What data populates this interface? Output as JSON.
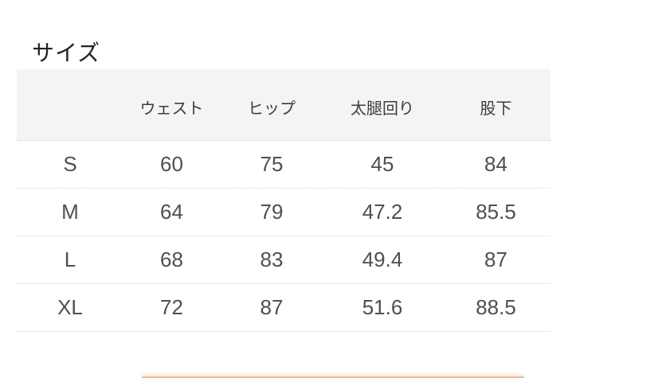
{
  "page": {
    "title": "サイズ"
  },
  "size_table": {
    "columns": {
      "size": "",
      "waist": "ウェスト",
      "hip": "ヒップ",
      "thigh": "太腿回り",
      "inseam": "股下"
    },
    "rows": [
      {
        "size": "S",
        "waist": "60",
        "hip": "75",
        "thigh": "45",
        "inseam": "84"
      },
      {
        "size": "M",
        "waist": "64",
        "hip": "79",
        "thigh": "47.2",
        "inseam": "85.5"
      },
      {
        "size": "L",
        "waist": "68",
        "hip": "83",
        "thigh": "49.4",
        "inseam": "87"
      },
      {
        "size": "XL",
        "waist": "72",
        "hip": "87",
        "thigh": "51.6",
        "inseam": "88.5"
      }
    ]
  },
  "colors": {
    "header_bg": "#f5f4f4",
    "data_text": "#4f4f4f",
    "title_text": "#222222",
    "divider": "#d2d2d2",
    "accent_band": "#f2a079"
  }
}
